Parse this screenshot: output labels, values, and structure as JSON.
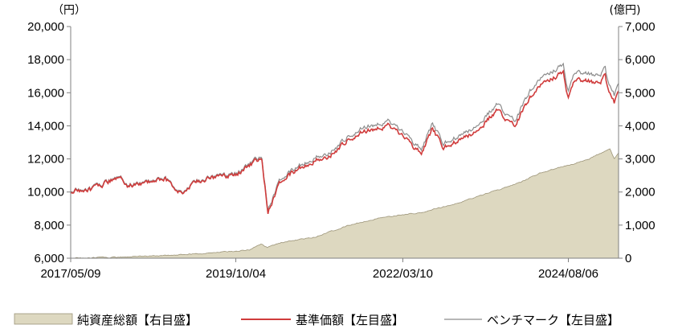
{
  "chart_data": {
    "type": "line",
    "left_unit": "（円）",
    "right_unit": "(億円)",
    "x": [
      "2017/05/09",
      "2019/10/04",
      "2022/03/10",
      "2024/08/06"
    ],
    "x_range": [
      "2017/05/09",
      "2025/04/30"
    ],
    "ylim_left": [
      6000,
      20000
    ],
    "ylim_right": [
      0,
      7000
    ],
    "yticks_left": [
      "6,000",
      "8,000",
      "10,000",
      "12,000",
      "14,000",
      "16,000",
      "18,000",
      "20,000"
    ],
    "yticks_right": [
      "0",
      "1,000",
      "2,000",
      "3,000",
      "4,000",
      "5,000",
      "6,000",
      "7,000"
    ],
    "xticks": [
      "2017/05/09",
      "2019/10/04",
      "2022/03/10",
      "2024/08/06"
    ],
    "grid": false,
    "legend_position": "bottom",
    "series": [
      {
        "name": "純資産総額【右目盛】",
        "axis": "right",
        "style": "area",
        "color": "#ddd8c0",
        "edge_color": "#9c9478",
        "points": [
          [
            "2017/05/09",
            0
          ],
          [
            "2017/12/01",
            20
          ],
          [
            "2018/06/01",
            60
          ],
          [
            "2019/01/01",
            110
          ],
          [
            "2019/06/01",
            160
          ],
          [
            "2019/12/15",
            250
          ],
          [
            "2020/02/15",
            420
          ],
          [
            "2020/03/20",
            330
          ],
          [
            "2020/06/01",
            470
          ],
          [
            "2020/12/01",
            650
          ],
          [
            "2021/06/01",
            1000
          ],
          [
            "2021/12/01",
            1250
          ],
          [
            "2022/06/01",
            1370
          ],
          [
            "2022/12/01",
            1620
          ],
          [
            "2023/06/01",
            1950
          ],
          [
            "2023/12/01",
            2300
          ],
          [
            "2024/03/01",
            2560
          ],
          [
            "2024/06/01",
            2720
          ],
          [
            "2024/09/01",
            2840
          ],
          [
            "2024/12/01",
            3020
          ],
          [
            "2025/01/15",
            3150
          ],
          [
            "2025/02/15",
            3220
          ],
          [
            "2025/03/15",
            3280
          ],
          [
            "2025/04/07",
            3020
          ],
          [
            "2025/04/30",
            3180
          ]
        ]
      },
      {
        "name": "基準価額【左目盛】",
        "axis": "left",
        "style": "line",
        "color": "#d03c3c",
        "points": [
          [
            "2017/05/09",
            10000
          ],
          [
            "2017/09/01",
            10150
          ],
          [
            "2018/01/25",
            10950
          ],
          [
            "2018/03/01",
            10300
          ],
          [
            "2018/06/01",
            10600
          ],
          [
            "2018/09/25",
            10800
          ],
          [
            "2018/12/25",
            9850
          ],
          [
            "2019/03/01",
            10600
          ],
          [
            "2019/06/01",
            10900
          ],
          [
            "2019/10/04",
            11000
          ],
          [
            "2020/01/15",
            11900
          ],
          [
            "2020/02/20",
            12000
          ],
          [
            "2020/03/23",
            8850
          ],
          [
            "2020/06/01",
            10700
          ],
          [
            "2020/09/01",
            11400
          ],
          [
            "2020/12/01",
            11900
          ],
          [
            "2021/03/01",
            12300
          ],
          [
            "2021/06/01",
            13300
          ],
          [
            "2021/09/01",
            13700
          ],
          [
            "2021/12/31",
            14000
          ],
          [
            "2022/03/10",
            13300
          ],
          [
            "2022/06/17",
            12300
          ],
          [
            "2022/08/15",
            13800
          ],
          [
            "2022/10/12",
            12700
          ],
          [
            "2023/01/10",
            13200
          ],
          [
            "2023/04/01",
            13600
          ],
          [
            "2023/07/20",
            14900
          ],
          [
            "2023/10/27",
            14000
          ],
          [
            "2024/01/15",
            15800
          ],
          [
            "2024/03/28",
            16600
          ],
          [
            "2024/07/10",
            17200
          ],
          [
            "2024/08/06",
            15600
          ],
          [
            "2024/09/01",
            16600
          ],
          [
            "2024/11/01",
            16800
          ],
          [
            "2025/01/15",
            16500
          ],
          [
            "2025/02/18",
            17000
          ],
          [
            "2025/03/10",
            15900
          ],
          [
            "2025/04/07",
            15400
          ],
          [
            "2025/04/30",
            16200
          ]
        ]
      },
      {
        "name": "ベンチマーク【左目盛】",
        "axis": "left",
        "style": "line",
        "color": "#8c8c8c",
        "points": [
          [
            "2017/05/09",
            10050
          ],
          [
            "2017/09/01",
            10200
          ],
          [
            "2018/01/25",
            11000
          ],
          [
            "2018/03/01",
            10350
          ],
          [
            "2018/06/01",
            10650
          ],
          [
            "2018/09/25",
            10850
          ],
          [
            "2018/12/25",
            9900
          ],
          [
            "2019/03/01",
            10650
          ],
          [
            "2019/06/01",
            10950
          ],
          [
            "2019/10/04",
            11080
          ],
          [
            "2020/01/15",
            12000
          ],
          [
            "2020/02/20",
            12100
          ],
          [
            "2020/03/23",
            9000
          ],
          [
            "2020/06/01",
            10850
          ],
          [
            "2020/09/01",
            11550
          ],
          [
            "2020/12/01",
            12080
          ],
          [
            "2021/03/01",
            12500
          ],
          [
            "2021/06/01",
            13500
          ],
          [
            "2021/09/01",
            13950
          ],
          [
            "2021/12/31",
            14250
          ],
          [
            "2022/03/10",
            13550
          ],
          [
            "2022/06/17",
            12550
          ],
          [
            "2022/08/15",
            14100
          ],
          [
            "2022/10/12",
            12950
          ],
          [
            "2023/01/10",
            13450
          ],
          [
            "2023/04/01",
            13900
          ],
          [
            "2023/07/20",
            15250
          ],
          [
            "2023/10/27",
            14300
          ],
          [
            "2024/01/15",
            16200
          ],
          [
            "2024/03/28",
            17000
          ],
          [
            "2024/07/10",
            17650
          ],
          [
            "2024/08/06",
            16000
          ],
          [
            "2024/09/01",
            17050
          ],
          [
            "2024/11/01",
            17250
          ],
          [
            "2025/01/15",
            16950
          ],
          [
            "2025/02/18",
            17450
          ],
          [
            "2025/03/10",
            16350
          ],
          [
            "2025/04/07",
            15850
          ],
          [
            "2025/04/30",
            16650
          ]
        ]
      }
    ]
  }
}
